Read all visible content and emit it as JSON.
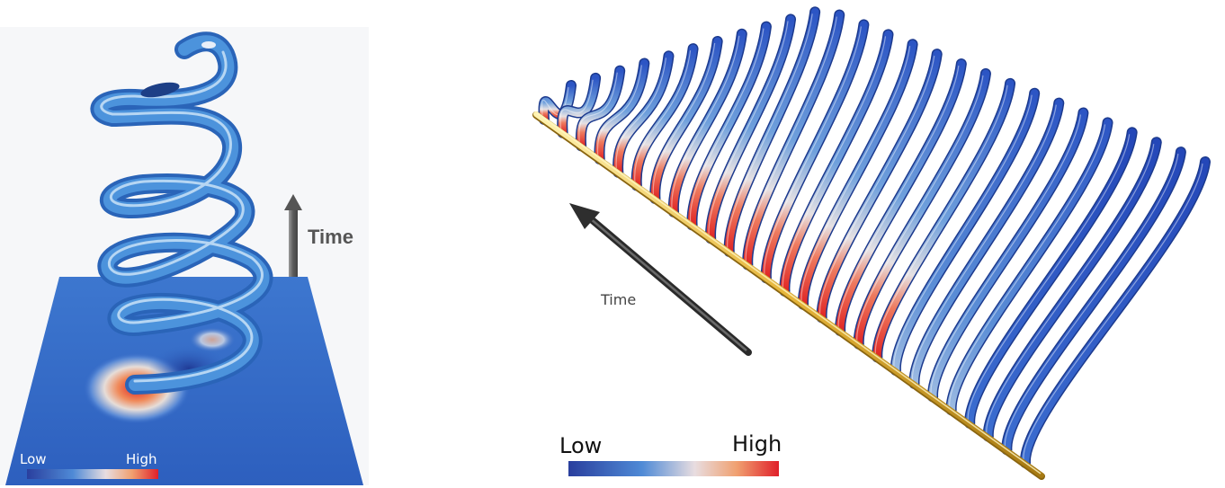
{
  "left_panel": {
    "axis_label": "Time",
    "legend": {
      "low": "Low",
      "high": "High"
    }
  },
  "right_panel": {
    "axis_label": "Time",
    "legend": {
      "low": "Low",
      "high": "High"
    }
  },
  "colors": {
    "low": "#2d4fb8",
    "mid": "#eae6ea",
    "high": "#e02525",
    "tube": "#3b82d0",
    "base_line": "#e6b53a",
    "arrow": "#4a4a4a"
  },
  "icons": {
    "left_arrow": "up-arrow-icon",
    "right_arrow": "diagonal-arrow-icon"
  }
}
